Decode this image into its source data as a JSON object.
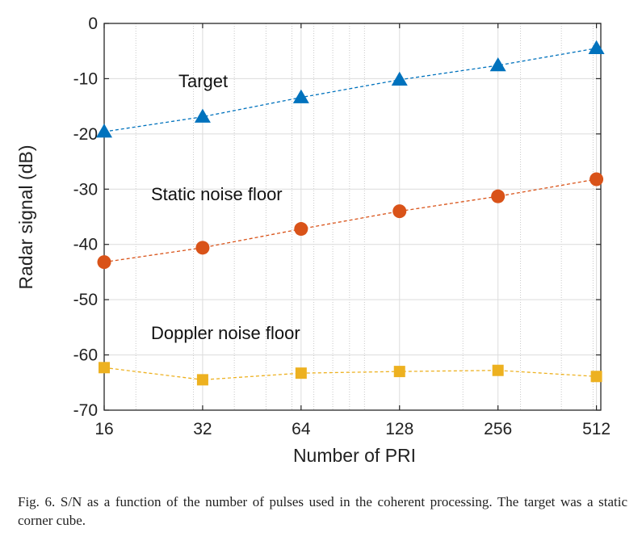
{
  "chart_data": {
    "type": "line",
    "xlabel": "Number of PRI",
    "ylabel": "Radar signal (dB)",
    "xscale": "log2",
    "xlim": [
      16,
      528
    ],
    "ylim": [
      -70,
      0
    ],
    "xticks": [
      16,
      32,
      64,
      128,
      256,
      512
    ],
    "xtick_labels": [
      "16",
      "32",
      "64",
      "128",
      "256",
      "512"
    ],
    "yticks": [
      0,
      -10,
      -20,
      -30,
      -40,
      -50,
      -60,
      -70
    ],
    "ytick_labels": [
      "0",
      "-10",
      "-20",
      "-30",
      "-40",
      "-50",
      "-60",
      "-70"
    ],
    "grid": true,
    "x": [
      16,
      32,
      64,
      128,
      256,
      512
    ],
    "series": [
      {
        "name": "Target",
        "marker": "triangle",
        "color": "#0072BD",
        "values": [
          -19.6,
          -16.9,
          -13.4,
          -10.2,
          -7.6,
          -4.5
        ]
      },
      {
        "name": "Static noise floor",
        "marker": "circle",
        "color": "#D95319",
        "values": [
          -43.2,
          -40.6,
          -37.2,
          -34.0,
          -31.3,
          -28.2
        ]
      },
      {
        "name": "Doppler noise floor",
        "marker": "square",
        "color": "#EDB120",
        "values": [
          -62.3,
          -64.5,
          -63.3,
          -63.0,
          -62.8,
          -63.9
        ]
      }
    ],
    "annotations": [
      "Target",
      "Static noise floor",
      "Doppler noise floor"
    ]
  },
  "caption": {
    "text": "Fig. 6.   S/N as a function of the number of pulses used in the coherent processing. The target was a static corner cube."
  }
}
